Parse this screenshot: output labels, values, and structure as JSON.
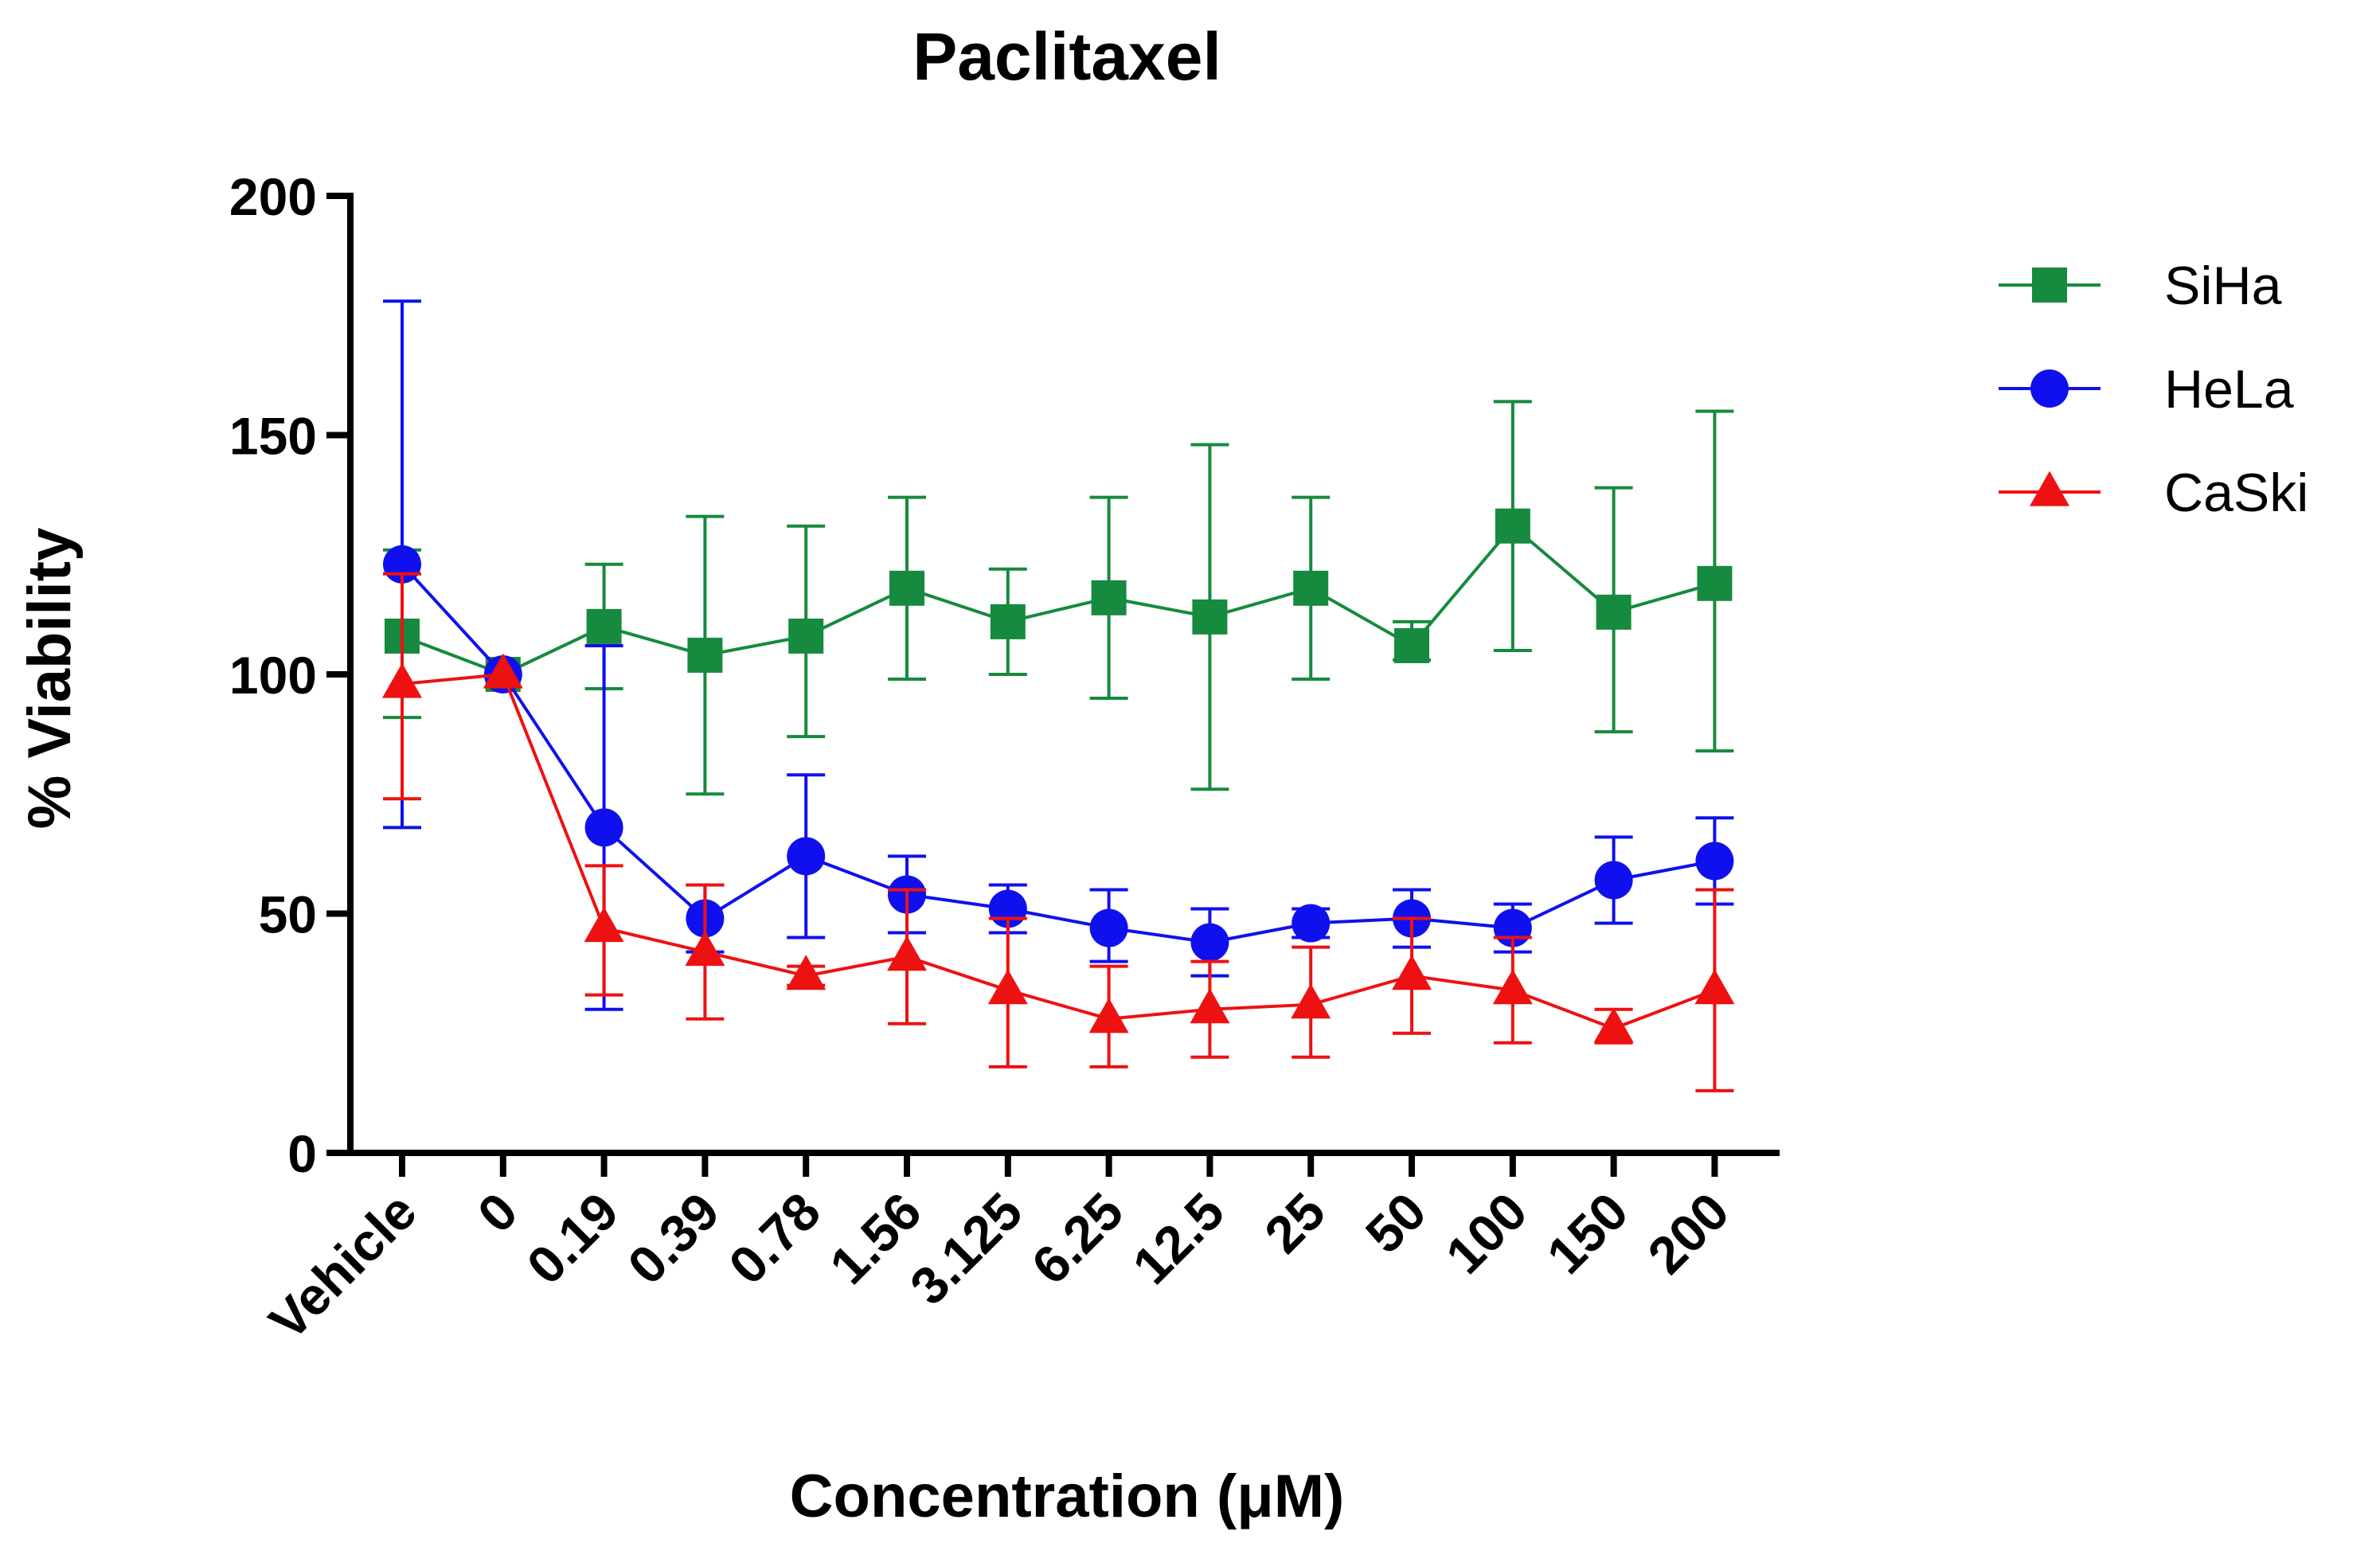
{
  "chart_data": {
    "type": "line",
    "title": "Paclitaxel",
    "xlabel": "Concentration (μM)",
    "ylabel": "% Viability",
    "ylim": [
      0,
      200
    ],
    "yticks": [
      0,
      50,
      100,
      150,
      200
    ],
    "categories": [
      "Vehicle",
      "0",
      "0.19",
      "0.39",
      "0.78",
      "1.56",
      "3.125",
      "6.25",
      "12.5",
      "25",
      "50",
      "100",
      "150",
      "200"
    ],
    "legend_position": "right",
    "series": [
      {
        "name": "SiHa",
        "color": "#168a3e",
        "marker": "square",
        "values": [
          108,
          100,
          110,
          104,
          108,
          118,
          111,
          116,
          112,
          118,
          106,
          131,
          113,
          119
        ],
        "err_low": [
          91,
          100,
          97,
          75,
          87,
          99,
          100,
          95,
          76,
          99,
          103,
          105,
          88,
          84
        ],
        "err_high": [
          126,
          100,
          123,
          133,
          131,
          137,
          122,
          137,
          148,
          137,
          111,
          157,
          139,
          155
        ]
      },
      {
        "name": "HeLa",
        "color": "#1010ee",
        "marker": "circle",
        "values": [
          123,
          100,
          68,
          49,
          62,
          54,
          51,
          47,
          44,
          48,
          49,
          47,
          57,
          61
        ],
        "err_low": [
          68,
          100,
          30,
          42,
          45,
          46,
          46,
          40,
          37,
          45,
          43,
          42,
          48,
          52
        ],
        "err_high": [
          178,
          100,
          106,
          56,
          79,
          62,
          56,
          55,
          51,
          51,
          55,
          52,
          66,
          70
        ]
      },
      {
        "name": "CaSki",
        "color": "#ee1111",
        "marker": "triangle",
        "values": [
          98,
          100,
          47,
          42,
          37,
          41,
          34,
          28,
          30,
          31,
          37,
          34,
          26,
          34
        ],
        "err_low": [
          74,
          100,
          33,
          28,
          35,
          27,
          18,
          18,
          20,
          20,
          25,
          23,
          23,
          13
        ],
        "err_high": [
          121,
          100,
          60,
          56,
          39,
          55,
          49,
          39,
          40,
          43,
          49,
          45,
          30,
          55
        ]
      }
    ]
  }
}
